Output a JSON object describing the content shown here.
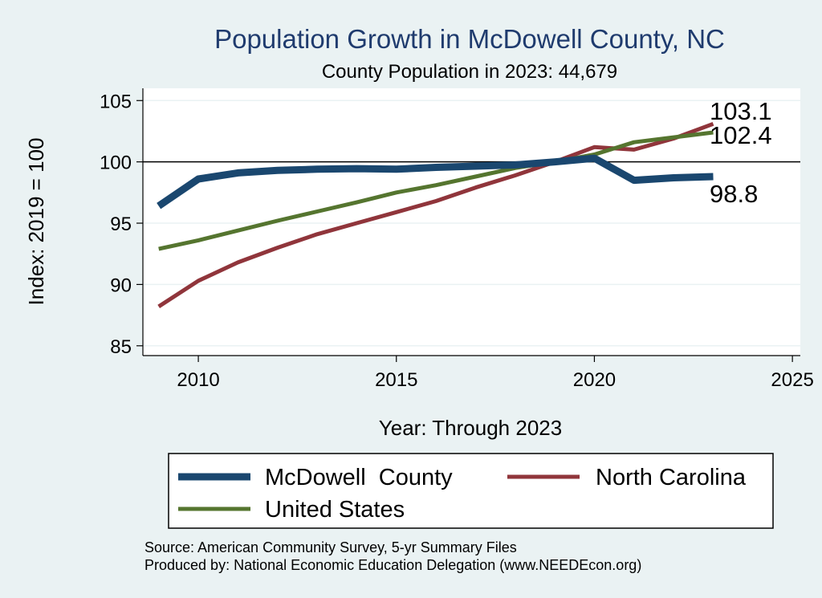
{
  "chart_data": {
    "type": "line",
    "title": "Population Growth in McDowell County, NC",
    "subtitle": "County Population in 2023: 44,679",
    "xlabel": "Year: Through 2023",
    "ylabel": "Index: 2019 = 100",
    "xlim": [
      2008.6,
      2025.2
    ],
    "ylim": [
      84.2,
      106.0
    ],
    "xticks": [
      2010,
      2015,
      2020,
      2025
    ],
    "yticks": [
      85,
      90,
      95,
      100,
      105
    ],
    "reference_line": 100,
    "grid": true,
    "legend_position": "bottom",
    "x": [
      2009,
      2010,
      2011,
      2012,
      2013,
      2014,
      2015,
      2016,
      2017,
      2018,
      2019,
      2020,
      2021,
      2022,
      2023
    ],
    "series": [
      {
        "name": "McDowell  County",
        "color": "#1a476f",
        "values": [
          96.4,
          98.6,
          99.1,
          99.3,
          99.4,
          99.45,
          99.4,
          99.55,
          99.65,
          99.75,
          100.0,
          100.3,
          98.5,
          98.7,
          98.8
        ],
        "end_label": "98.8"
      },
      {
        "name": "North Carolina",
        "color": "#90353b",
        "values": [
          88.2,
          90.3,
          91.8,
          93.0,
          94.1,
          95.0,
          95.9,
          96.8,
          97.9,
          98.9,
          100.0,
          101.2,
          101.0,
          101.9,
          103.1
        ],
        "end_label": "103.1"
      },
      {
        "name": "United States",
        "color": "#55752f",
        "values": [
          92.9,
          93.6,
          94.4,
          95.2,
          95.95,
          96.7,
          97.5,
          98.1,
          98.8,
          99.5,
          100.0,
          100.6,
          101.6,
          102.0,
          102.4
        ],
        "end_label": "102.4"
      }
    ]
  },
  "notes": {
    "source": "Source: American Community Survey, 5-yr Summary Files",
    "produced": "Produced by: National Economic Education Delegation (www.NEEDEcon.org)"
  }
}
